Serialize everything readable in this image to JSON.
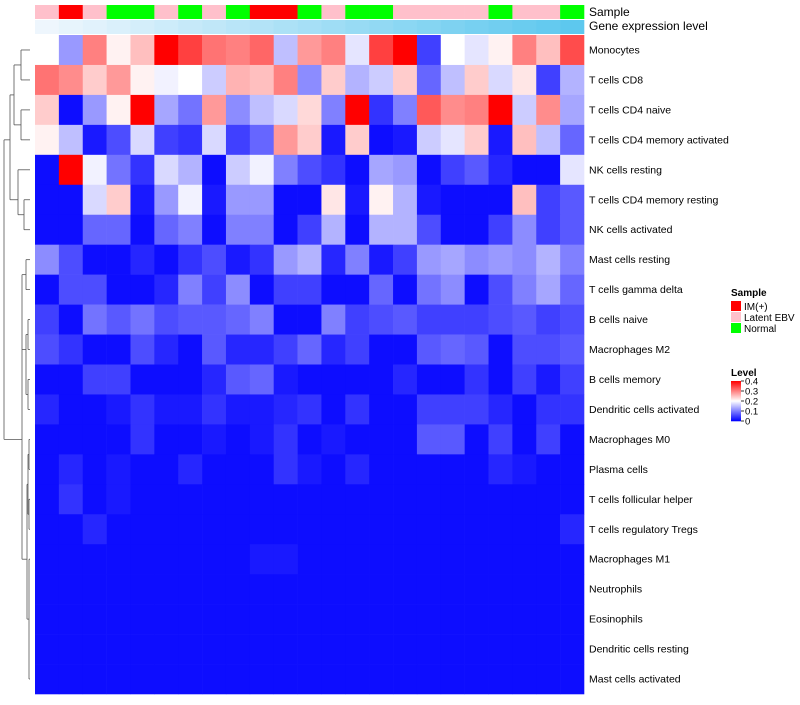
{
  "chart_data": {
    "type": "heatmap",
    "title": "",
    "annotation_tracks": {
      "sample_label": "Sample",
      "gene_label": "Gene expression level"
    },
    "sample_groups": [
      "Latent EBV",
      "IM(+)",
      "Latent EBV",
      "Normal",
      "Normal",
      "Latent EBV",
      "Normal",
      "Latent EBV",
      "Normal",
      "IM(+)",
      "IM(+)",
      "Normal",
      "Latent EBV",
      "Normal",
      "Normal",
      "Latent EBV",
      "Latent EBV",
      "Latent EBV",
      "Latent EBV",
      "Normal",
      "Latent EBV",
      "Latent EBV",
      "Normal"
    ],
    "row_labels": [
      "Monocytes",
      "T cells CD8",
      "T cells CD4 naive",
      "T cells CD4 memory activated",
      "NK cells resting",
      "T cells CD4 memory resting",
      "NK cells activated",
      "Mast cells resting",
      "T cells gamma delta",
      "B cells naive",
      "Macrophages M2",
      "B cells memory",
      "Dendritic cells activated",
      "Macrophages M0",
      "Plasma cells",
      "T cells follicular helper",
      "T cells regulatory  Tregs",
      "Macrophages M1",
      "Neutrophils",
      "Eosinophils",
      "Dendritic cells resting",
      "Mast cells activated"
    ],
    "values": [
      [
        0.2,
        0.12,
        0.3,
        0.21,
        0.25,
        0.4,
        0.35,
        0.31,
        0.3,
        0.32,
        0.15,
        0.28,
        0.3,
        0.18,
        0.35,
        0.4,
        0.05,
        0.2,
        0.18,
        0.21,
        0.3,
        0.25,
        0.34
      ],
      [
        0.31,
        0.29,
        0.24,
        0.28,
        0.21,
        0.19,
        0.2,
        0.16,
        0.26,
        0.25,
        0.3,
        0.11,
        0.24,
        0.14,
        0.16,
        0.24,
        0.08,
        0.15,
        0.24,
        0.17,
        0.22,
        0.05,
        0.14
      ],
      [
        0.24,
        0.01,
        0.12,
        0.21,
        0.4,
        0.13,
        0.09,
        0.28,
        0.11,
        0.15,
        0.17,
        0.23,
        0.1,
        0.4,
        0.04,
        0.1,
        0.33,
        0.29,
        0.3,
        0.4,
        0.16,
        0.29,
        0.13
      ],
      [
        0.21,
        0.15,
        0.02,
        0.06,
        0.17,
        0.05,
        0.04,
        0.17,
        0.05,
        0.08,
        0.28,
        0.24,
        0.02,
        0.24,
        0.01,
        0.02,
        0.16,
        0.18,
        0.24,
        0.02,
        0.25,
        0.15,
        0.08
      ],
      [
        0.01,
        0.4,
        0.19,
        0.09,
        0.04,
        0.17,
        0.14,
        0.01,
        0.16,
        0.19,
        0.1,
        0.06,
        0.04,
        0.01,
        0.13,
        0.12,
        0.01,
        0.05,
        0.07,
        0.03,
        0.01,
        0.01,
        0.18
      ],
      [
        0.01,
        0.01,
        0.17,
        0.24,
        0.02,
        0.12,
        0.19,
        0.02,
        0.12,
        0.12,
        0.01,
        0.01,
        0.22,
        0.02,
        0.21,
        0.14,
        0.02,
        0.01,
        0.01,
        0.01,
        0.25,
        0.05,
        0.07
      ],
      [
        0.01,
        0.01,
        0.08,
        0.08,
        0.01,
        0.08,
        0.1,
        0.01,
        0.1,
        0.1,
        0.01,
        0.05,
        0.14,
        0.01,
        0.14,
        0.14,
        0.06,
        0.01,
        0.01,
        0.05,
        0.11,
        0.05,
        0.07
      ],
      [
        0.11,
        0.06,
        0.01,
        0.01,
        0.03,
        0.01,
        0.04,
        0.06,
        0.02,
        0.04,
        0.12,
        0.14,
        0.03,
        0.1,
        0.02,
        0.05,
        0.12,
        0.13,
        0.11,
        0.12,
        0.11,
        0.14,
        0.1
      ],
      [
        0.01,
        0.06,
        0.06,
        0.01,
        0.01,
        0.03,
        0.1,
        0.05,
        0.11,
        0.01,
        0.05,
        0.05,
        0.01,
        0.01,
        0.08,
        0.01,
        0.09,
        0.11,
        0.01,
        0.06,
        0.1,
        0.13,
        0.08
      ],
      [
        0.05,
        0.01,
        0.09,
        0.07,
        0.09,
        0.06,
        0.07,
        0.07,
        0.08,
        0.1,
        0.01,
        0.01,
        0.1,
        0.05,
        0.06,
        0.07,
        0.05,
        0.05,
        0.05,
        0.06,
        0.07,
        0.05,
        0.06
      ],
      [
        0.06,
        0.04,
        0.01,
        0.01,
        0.06,
        0.03,
        0.01,
        0.07,
        0.03,
        0.03,
        0.05,
        0.08,
        0.03,
        0.05,
        0.01,
        0.01,
        0.07,
        0.08,
        0.07,
        0.01,
        0.06,
        0.06,
        0.07
      ],
      [
        0.01,
        0.01,
        0.05,
        0.05,
        0.01,
        0.01,
        0.01,
        0.03,
        0.07,
        0.08,
        0.02,
        0.01,
        0.01,
        0.01,
        0.01,
        0.03,
        0.01,
        0.01,
        0.04,
        0.01,
        0.05,
        0.02,
        0.05
      ],
      [
        0.03,
        0.01,
        0.01,
        0.02,
        0.04,
        0.02,
        0.02,
        0.04,
        0.02,
        0.02,
        0.03,
        0.04,
        0.01,
        0.04,
        0.01,
        0.01,
        0.05,
        0.05,
        0.05,
        0.03,
        0.01,
        0.04,
        0.04
      ],
      [
        0.01,
        0.01,
        0.01,
        0.01,
        0.04,
        0.01,
        0.01,
        0.02,
        0.01,
        0.02,
        0.04,
        0.01,
        0.02,
        0.01,
        0.01,
        0.01,
        0.07,
        0.07,
        0.01,
        0.05,
        0.01,
        0.05,
        0.01
      ],
      [
        0.01,
        0.03,
        0.01,
        0.02,
        0.01,
        0.01,
        0.03,
        0.01,
        0.01,
        0.01,
        0.04,
        0.02,
        0.01,
        0.03,
        0.01,
        0.01,
        0.01,
        0.01,
        0.01,
        0.03,
        0.02,
        0.01,
        0.01
      ],
      [
        0.01,
        0.04,
        0.01,
        0.02,
        0.01,
        0.01,
        0.01,
        0.01,
        0.01,
        0.01,
        0.01,
        0.01,
        0.01,
        0.01,
        0.01,
        0.01,
        0.01,
        0.01,
        0.01,
        0.01,
        0.01,
        0.01,
        0.01
      ],
      [
        0.01,
        0.01,
        0.03,
        0.01,
        0.01,
        0.01,
        0.01,
        0.01,
        0.01,
        0.01,
        0.01,
        0.01,
        0.01,
        0.01,
        0.01,
        0.01,
        0.01,
        0.01,
        0.01,
        0.01,
        0.01,
        0.01,
        0.03
      ],
      [
        0.01,
        0.01,
        0.01,
        0.01,
        0.01,
        0.01,
        0.01,
        0.01,
        0.01,
        0.02,
        0.02,
        0.01,
        0.01,
        0.01,
        0.01,
        0.01,
        0.01,
        0.01,
        0.01,
        0.01,
        0.01,
        0.01,
        0.01
      ],
      [
        0.01,
        0.01,
        0.01,
        0.01,
        0.01,
        0.01,
        0.01,
        0.01,
        0.01,
        0.01,
        0.01,
        0.01,
        0.01,
        0.01,
        0.01,
        0.01,
        0.01,
        0.01,
        0.01,
        0.01,
        0.01,
        0.01,
        0.01
      ],
      [
        0.01,
        0.01,
        0.01,
        0.01,
        0.01,
        0.01,
        0.01,
        0.01,
        0.01,
        0.01,
        0.01,
        0.01,
        0.01,
        0.01,
        0.01,
        0.01,
        0.01,
        0.01,
        0.01,
        0.01,
        0.01,
        0.01,
        0.01
      ],
      [
        0.01,
        0.01,
        0.01,
        0.01,
        0.01,
        0.01,
        0.01,
        0.01,
        0.01,
        0.01,
        0.01,
        0.01,
        0.01,
        0.01,
        0.01,
        0.01,
        0.01,
        0.01,
        0.01,
        0.01,
        0.01,
        0.01,
        0.01
      ],
      [
        0.01,
        0.01,
        0.01,
        0.01,
        0.01,
        0.01,
        0.01,
        0.01,
        0.01,
        0.01,
        0.01,
        0.01,
        0.01,
        0.01,
        0.01,
        0.01,
        0.01,
        0.01,
        0.01,
        0.01,
        0.01,
        0.01,
        0.01
      ]
    ],
    "color_scale": {
      "low": "#0000ff",
      "mid": "#ffffff",
      "high": "#ff0000",
      "min": 0,
      "mid_value": 0.2,
      "max": 0.4
    },
    "legend": {
      "sample_title": "Sample",
      "sample_items": [
        {
          "label": "IM(+)",
          "color": "#ff0000"
        },
        {
          "label": "Latent EBV",
          "color": "#ffc0cb"
        },
        {
          "label": "Normal",
          "color": "#00ff00"
        }
      ],
      "level_title": "Level",
      "level_ticks": [
        "0.4",
        "0.3",
        "0.2",
        "0.1",
        "0"
      ],
      "level_tick_values": [
        0.4,
        0.3,
        0.2,
        0.1,
        0
      ],
      "placement": "right"
    },
    "gene_track_colors": [
      "#eef6fd",
      "#5dc8ee"
    ]
  }
}
